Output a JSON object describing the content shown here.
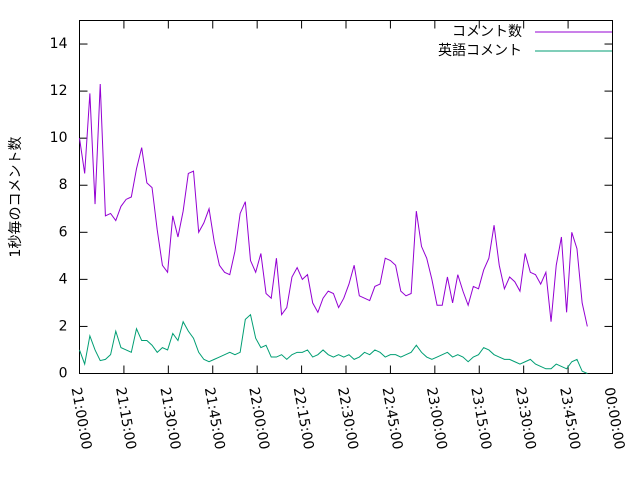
{
  "chart_data": {
    "type": "line",
    "ylabel": "1秒毎のコメント数",
    "x": [
      0,
      1.75,
      3.5,
      5.25,
      7,
      8.75,
      10.5,
      12.25,
      14,
      15.75,
      17.5,
      19.25,
      21,
      22.75,
      24.5,
      26.25,
      28,
      29.75,
      31.5,
      33.25,
      35,
      36.75,
      38.5,
      40.25,
      42,
      43.75,
      45.5,
      47.25,
      49,
      50.75,
      52.5,
      54.25,
      56,
      57.75,
      59.5,
      61.25,
      63,
      64.75,
      66.5,
      68.25,
      70,
      71.75,
      73.5,
      75.25,
      77,
      78.75,
      80.5,
      82.25,
      84,
      85.75,
      87.5,
      89.25,
      91,
      92.75,
      94.5,
      96.25,
      98,
      99.75,
      101.5,
      103.25,
      105,
      106.75,
      108.5,
      110.25,
      112,
      113.75,
      115.5,
      117.25,
      119,
      120.75,
      122.5,
      124.25,
      126,
      127.75,
      129.5,
      131.25,
      133,
      134.75,
      136.5,
      138.25,
      140,
      141.75,
      143.5,
      145.25,
      147,
      148.75,
      150.5,
      152.25,
      154,
      155.75,
      157.5,
      159.25,
      161,
      162.75,
      164.5,
      166.25,
      168,
      169.75,
      171.5
    ],
    "series": [
      {
        "name": "コメント数",
        "color": "#9400d3",
        "values": [
          10.0,
          8.5,
          11.9,
          7.2,
          12.3,
          6.7,
          6.8,
          6.5,
          7.1,
          7.4,
          7.5,
          8.7,
          9.6,
          8.1,
          7.9,
          6.1,
          4.6,
          4.3,
          6.7,
          5.8,
          6.9,
          8.5,
          8.6,
          6.0,
          6.4,
          7.0,
          5.6,
          4.6,
          4.3,
          4.2,
          5.2,
          6.8,
          7.3,
          4.8,
          4.3,
          5.1,
          3.4,
          3.2,
          4.9,
          2.5,
          2.8,
          4.1,
          4.5,
          4.0,
          4.2,
          3.0,
          2.6,
          3.2,
          3.5,
          3.4,
          2.8,
          3.2,
          3.8,
          4.6,
          3.3,
          3.2,
          3.1,
          3.7,
          3.8,
          4.9,
          4.8,
          4.6,
          3.5,
          3.3,
          3.4,
          6.9,
          5.4,
          4.9,
          4.0,
          2.9,
          2.9,
          4.1,
          3.0,
          4.2,
          3.5,
          2.9,
          3.7,
          3.6,
          4.4,
          4.9,
          6.3,
          4.6,
          3.6,
          4.1,
          3.9,
          3.5,
          5.1,
          4.3,
          4.2,
          3.8,
          4.3,
          2.2,
          4.6,
          5.8,
          2.6,
          6.0,
          5.3,
          3.0,
          2.0
        ]
      },
      {
        "name": "英語コメント",
        "color": "#009e73",
        "values": [
          1.0,
          0.4,
          1.6,
          1.0,
          0.55,
          0.6,
          0.8,
          1.8,
          1.1,
          1.0,
          0.9,
          1.9,
          1.4,
          1.4,
          1.2,
          0.9,
          1.1,
          1.0,
          1.7,
          1.4,
          2.2,
          1.8,
          1.5,
          0.9,
          0.6,
          0.5,
          0.6,
          0.7,
          0.8,
          0.9,
          0.8,
          0.9,
          2.3,
          2.5,
          1.5,
          1.1,
          1.2,
          0.7,
          0.7,
          0.8,
          0.6,
          0.8,
          0.9,
          0.9,
          1.0,
          0.7,
          0.8,
          1.0,
          0.8,
          0.7,
          0.8,
          0.7,
          0.8,
          0.6,
          0.7,
          0.9,
          0.8,
          1.0,
          0.9,
          0.7,
          0.8,
          0.8,
          0.7,
          0.8,
          0.9,
          1.2,
          0.9,
          0.7,
          0.6,
          0.7,
          0.8,
          0.9,
          0.7,
          0.8,
          0.7,
          0.5,
          0.7,
          0.8,
          1.1,
          1.0,
          0.8,
          0.7,
          0.6,
          0.6,
          0.5,
          0.4,
          0.5,
          0.6,
          0.4,
          0.3,
          0.2,
          0.2,
          0.4,
          0.3,
          0.2,
          0.5,
          0.6,
          0.1,
          0.0
        ]
      }
    ],
    "xlim": [
      0,
      180
    ],
    "xticks": [
      {
        "value": 0,
        "label": "21:00:00"
      },
      {
        "value": 15,
        "label": "21:15:00"
      },
      {
        "value": 30,
        "label": "21:30:00"
      },
      {
        "value": 45,
        "label": "21:45:00"
      },
      {
        "value": 60,
        "label": "22:00:00"
      },
      {
        "value": 75,
        "label": "22:15:00"
      },
      {
        "value": 90,
        "label": "22:30:00"
      },
      {
        "value": 105,
        "label": "22:45:00"
      },
      {
        "value": 120,
        "label": "23:00:00"
      },
      {
        "value": 135,
        "label": "23:15:00"
      },
      {
        "value": 150,
        "label": "23:30:00"
      },
      {
        "value": 165,
        "label": "23:45:00"
      },
      {
        "value": 180,
        "label": "00:00:00"
      }
    ],
    "ylim": [
      0,
      15
    ],
    "yticks": [
      0,
      2,
      4,
      6,
      8,
      10,
      12,
      14
    ],
    "legend": "top-right",
    "grid": false
  }
}
